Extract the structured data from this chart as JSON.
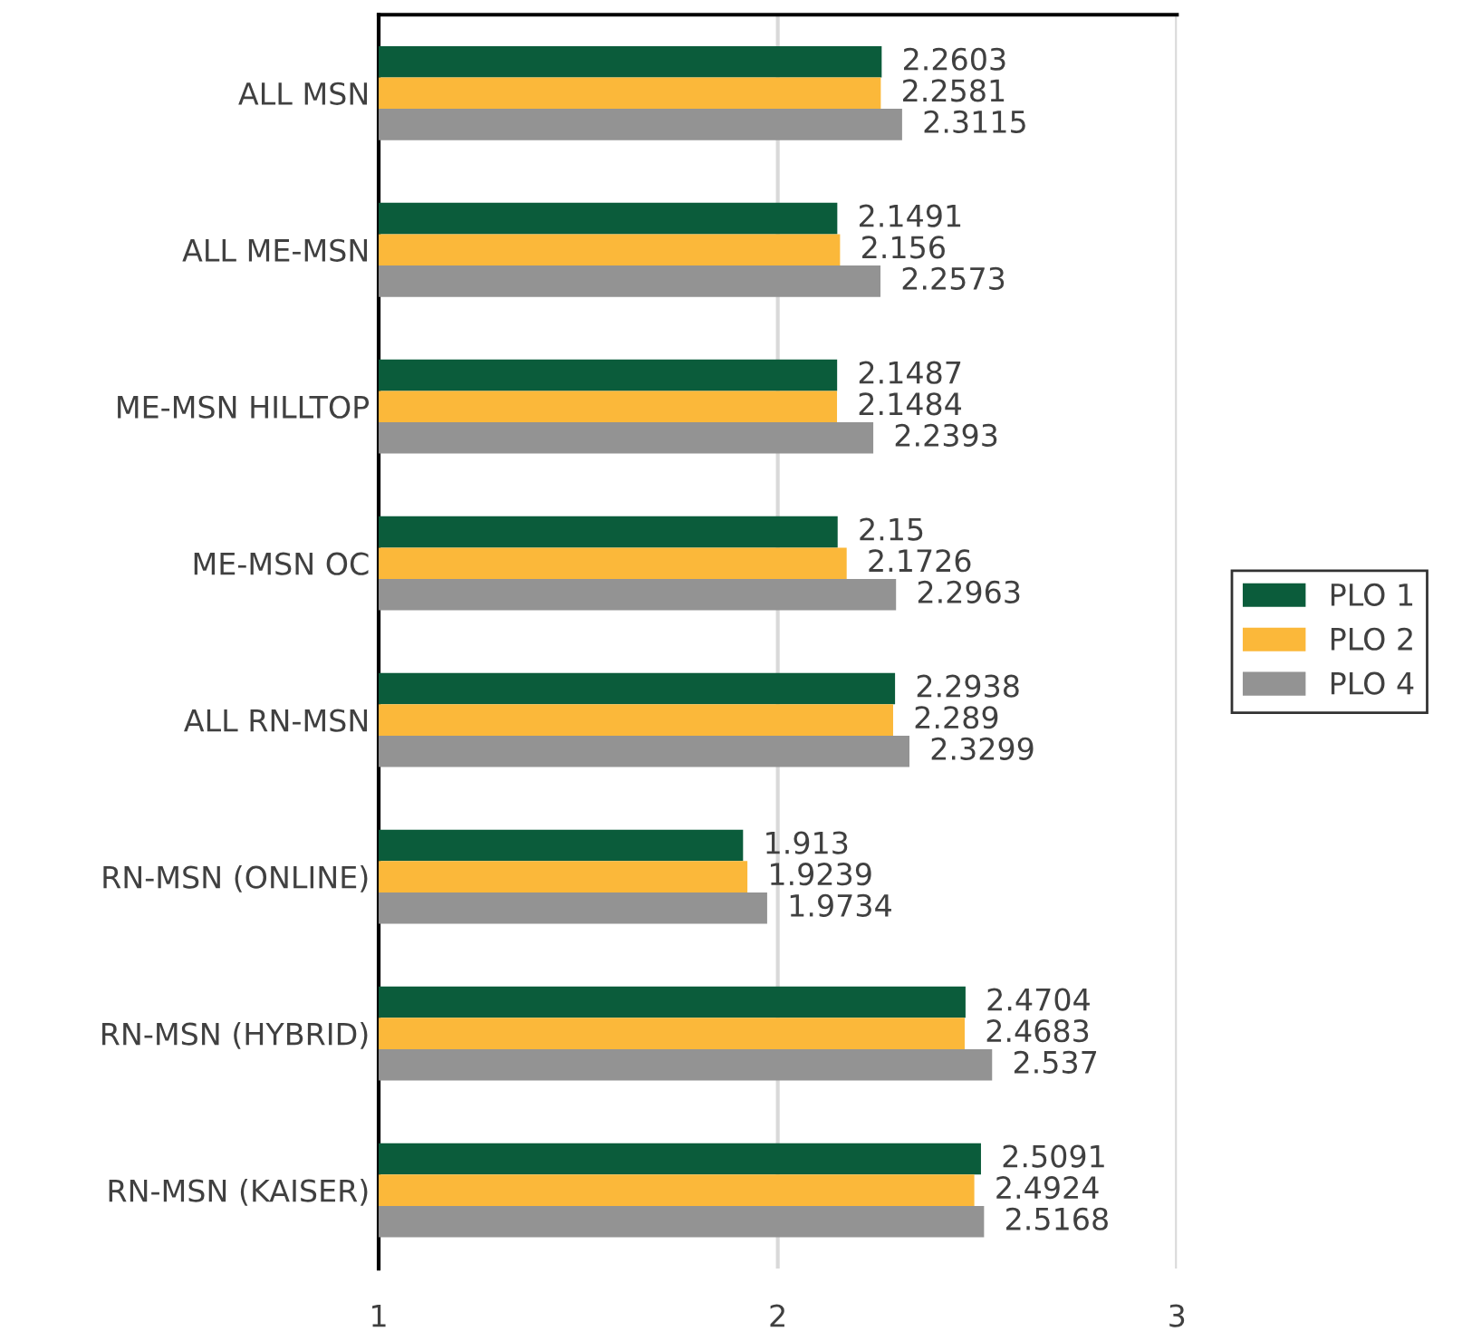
{
  "chart_data": {
    "type": "bar",
    "orientation": "horizontal",
    "categories": [
      "ALL MSN",
      "ALL ME-MSN",
      "ME-MSN HILLTOP",
      "ME-MSN OC",
      "ALL RN-MSN",
      "RN-MSN (ONLINE)",
      "RN-MSN (HYBRID)",
      "RN-MSN (KAISER)"
    ],
    "series": [
      {
        "name": "PLO 1",
        "color": "#0b5c3b",
        "values": [
          2.2603,
          2.1491,
          2.1487,
          2.15,
          2.2938,
          1.913,
          2.4704,
          2.5091
        ]
      },
      {
        "name": "PLO 2",
        "color": "#fbb83a",
        "values": [
          2.2581,
          2.156,
          2.1484,
          2.1726,
          2.289,
          1.9239,
          2.4683,
          2.4924
        ]
      },
      {
        "name": "PLO 4",
        "color": "#939393",
        "values": [
          2.3115,
          2.2573,
          2.2393,
          2.2963,
          2.3299,
          1.9734,
          2.537,
          2.5168
        ]
      }
    ],
    "xlim": [
      1,
      3
    ],
    "xticks": [
      1,
      2,
      3
    ],
    "grid": "x",
    "legend": "right",
    "data_labels": true
  }
}
